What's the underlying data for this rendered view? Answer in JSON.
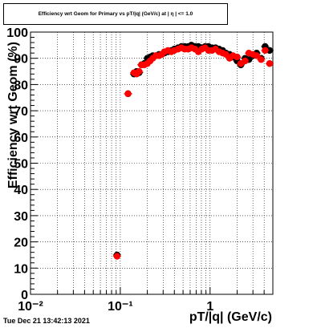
{
  "title": "Efficiency wrt Geom for Primary vs pT/|q| (GeV/c) at | η | <= 1.0",
  "timestamp": "Tue Dec 21 13:42:13 2021",
  "colors": {
    "series_black": "#000000",
    "series_red": "#ff0000",
    "grid": "#000000",
    "frame": "#000000"
  },
  "chart_data": {
    "type": "scatter",
    "title": "Efficiency wrt Geom for Primary vs pT/|q| (GeV/c) at | η | <= 1.0",
    "xlabel": "pT/|q| (GeV/c)",
    "ylabel": "Efficiency wrt Geom (%)",
    "x_scale": "log",
    "xlim": [
      0.01,
      5.0
    ],
    "ylim": [
      0,
      100
    ],
    "x_ticks": [
      {
        "value": 0.01,
        "label": "10⁻²"
      },
      {
        "value": 0.1,
        "label": "10⁻¹"
      },
      {
        "value": 1,
        "label": "1"
      }
    ],
    "y_ticks": [
      {
        "value": 0,
        "label": "0"
      },
      {
        "value": 10,
        "label": "10"
      },
      {
        "value": 20,
        "label": "20"
      },
      {
        "value": 30,
        "label": "30"
      },
      {
        "value": 40,
        "label": "40"
      },
      {
        "value": 50,
        "label": "50"
      },
      {
        "value": 60,
        "label": "60"
      },
      {
        "value": 70,
        "label": "70"
      },
      {
        "value": 80,
        "label": "80"
      },
      {
        "value": 90,
        "label": "90"
      },
      {
        "value": 100,
        "label": "100"
      }
    ],
    "grid": true,
    "legend": "none",
    "series": [
      {
        "color": "#000000",
        "x": [
          0.092,
          0.122,
          0.142,
          0.152,
          0.162,
          0.172,
          0.185,
          0.2,
          0.215,
          0.23,
          0.25,
          0.27,
          0.29,
          0.31,
          0.34,
          0.37,
          0.4,
          0.44,
          0.48,
          0.52,
          0.57,
          0.62,
          0.68,
          0.74,
          0.81,
          0.88,
          0.96,
          1.05,
          1.15,
          1.26,
          1.38,
          1.5,
          1.65,
          1.8,
          2.0,
          2.2,
          2.45,
          2.7,
          3.0,
          3.3,
          3.7,
          4.1,
          4.6
        ],
        "y": [
          15,
          76.5,
          84,
          85,
          84.5,
          87.5,
          88,
          90,
          90.5,
          91,
          91,
          91.5,
          91.5,
          92,
          92.5,
          93,
          93.5,
          94,
          94.5,
          94.5,
          94.5,
          95,
          94.5,
          94.5,
          94,
          94.5,
          94.5,
          94,
          94,
          93.5,
          93,
          92,
          91.5,
          90.5,
          89,
          87.5,
          90,
          89.5,
          91,
          92,
          90,
          94.5,
          93
        ]
      },
      {
        "color": "#ff0000",
        "x": [
          0.092,
          0.122,
          0.142,
          0.152,
          0.162,
          0.172,
          0.185,
          0.2,
          0.215,
          0.23,
          0.25,
          0.27,
          0.29,
          0.31,
          0.34,
          0.37,
          0.4,
          0.44,
          0.48,
          0.52,
          0.57,
          0.62,
          0.68,
          0.74,
          0.81,
          0.88,
          0.96,
          1.05,
          1.15,
          1.26,
          1.38,
          1.5,
          1.65,
          1.8,
          2.0,
          2.2,
          2.45,
          2.7,
          3.0,
          3.3,
          3.7,
          4.1,
          4.6
        ],
        "y": [
          14.5,
          76.5,
          84.5,
          84,
          85,
          87.5,
          87.5,
          88,
          89,
          90,
          91,
          91,
          91.5,
          92.5,
          93,
          92.5,
          93,
          93.5,
          94,
          93.5,
          93.5,
          94,
          93.5,
          92.5,
          93.5,
          94,
          93,
          93,
          93.5,
          92.5,
          92,
          91.5,
          90,
          91,
          90.5,
          88,
          89,
          92,
          91.5,
          91,
          89.5,
          93,
          88
        ]
      }
    ]
  }
}
